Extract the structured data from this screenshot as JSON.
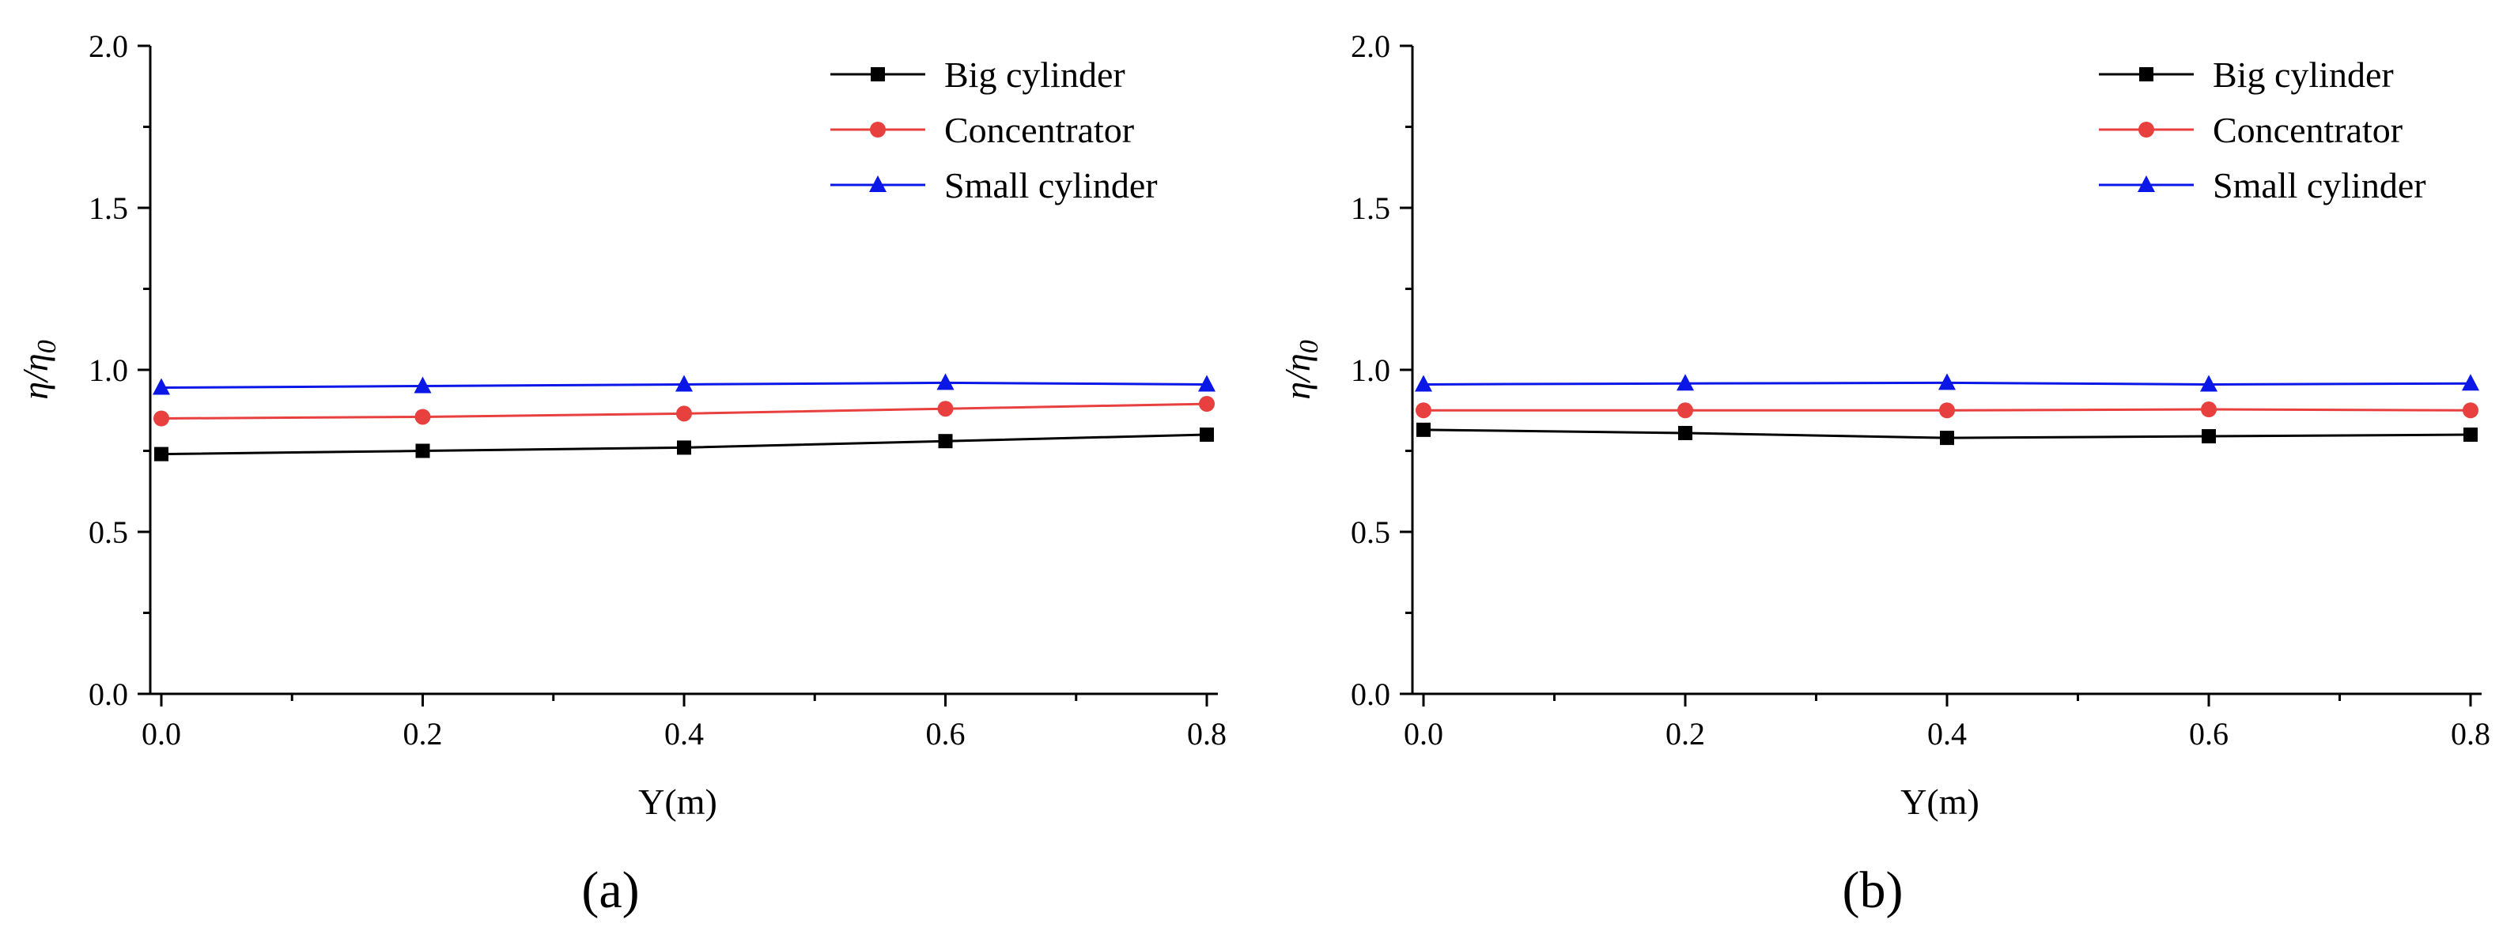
{
  "chart_data": [
    {
      "type": "line",
      "panel_label": "(a)",
      "title": "",
      "xlabel": "Y(m)",
      "ylabel": "η/η0",
      "ylabel_main": "η/η",
      "ylabel_sub": "0",
      "xlim": [
        0.0,
        0.8
      ],
      "ylim": [
        0.0,
        2.0
      ],
      "x_ticks": [
        "0.0",
        "0.2",
        "0.4",
        "0.6",
        "0.8"
      ],
      "y_ticks": [
        "0.0",
        "0.5",
        "1.0",
        "1.5",
        "2.0"
      ],
      "legend_position": "top-right",
      "x": [
        0.0,
        0.2,
        0.4,
        0.6,
        0.8
      ],
      "series": [
        {
          "name": "Big cylinder",
          "color": "#000000",
          "marker": "square",
          "values": [
            0.74,
            0.75,
            0.76,
            0.78,
            0.8
          ]
        },
        {
          "name": "Concentrator",
          "color": "#e8403f",
          "marker": "circle",
          "values": [
            0.85,
            0.855,
            0.865,
            0.88,
            0.895
          ]
        },
        {
          "name": "Small cylinder",
          "color": "#0a17e6",
          "marker": "triangle",
          "values": [
            0.945,
            0.95,
            0.955,
            0.96,
            0.955
          ]
        }
      ]
    },
    {
      "type": "line",
      "panel_label": "(b)",
      "title": "",
      "xlabel": "Y(m)",
      "ylabel": "η/η0",
      "ylabel_main": "η/η",
      "ylabel_sub": "0",
      "xlim": [
        0.0,
        0.8
      ],
      "ylim": [
        0.0,
        2.0
      ],
      "x_ticks": [
        "0.0",
        "0.2",
        "0.4",
        "0.6",
        "0.8"
      ],
      "y_ticks": [
        "0.0",
        "0.5",
        "1.0",
        "1.5",
        "2.0"
      ],
      "legend_position": "top-right",
      "x": [
        0.0,
        0.2,
        0.4,
        0.6,
        0.8
      ],
      "series": [
        {
          "name": "Big cylinder",
          "color": "#000000",
          "marker": "square",
          "values": [
            0.815,
            0.805,
            0.79,
            0.795,
            0.8
          ]
        },
        {
          "name": "Concentrator",
          "color": "#e8403f",
          "marker": "circle",
          "values": [
            0.875,
            0.875,
            0.875,
            0.878,
            0.875
          ]
        },
        {
          "name": "Small cylinder",
          "color": "#0a17e6",
          "marker": "triangle",
          "values": [
            0.955,
            0.958,
            0.96,
            0.955,
            0.958
          ]
        }
      ]
    }
  ]
}
